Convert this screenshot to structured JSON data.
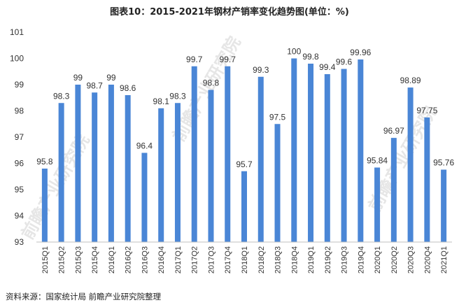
{
  "chart_data": {
    "type": "bar",
    "title": "图表10：2015-2021年钢材产销率变化趋势图(单位：%)",
    "xlabel": "",
    "ylabel": "",
    "ylim": [
      93,
      101
    ],
    "yticks": [
      "93",
      "94",
      "95",
      "96",
      "97",
      "98",
      "99",
      "100",
      "101"
    ],
    "categories": [
      "2015Q1",
      "2015Q2",
      "2015Q3",
      "2015Q4",
      "2016Q1",
      "2016Q2",
      "2016Q3",
      "2016Q4",
      "2017Q1",
      "2017Q2",
      "2017Q3",
      "2017Q4",
      "2018Q1",
      "2018Q2",
      "2018Q3",
      "2018Q4",
      "2019Q1",
      "2019Q2",
      "2019Q3",
      "2019Q4",
      "2020Q1",
      "2020Q2",
      "2020Q3",
      "2020Q4",
      "2021Q1"
    ],
    "values": [
      95.8,
      98.3,
      99,
      98.7,
      99,
      98.6,
      96.4,
      98.1,
      98.3,
      99.7,
      98.8,
      99.7,
      95.7,
      99.3,
      97.5,
      100,
      99.8,
      99.4,
      99.6,
      99.96,
      95.84,
      96.97,
      98.89,
      97.75,
      95.76
    ],
    "labels": [
      "95.8",
      "98.3",
      "99",
      "98.7",
      "99",
      "98.6",
      "96.4",
      "98.1",
      "98.3",
      "99.7",
      "98.8",
      "99.7",
      "95.7",
      "99.3",
      "97.5",
      "100",
      "99.8",
      "99.4",
      "99.6",
      "99.96",
      "95.84",
      "96.97",
      "98.89",
      "97.75",
      "95.76"
    ],
    "bar_color": "#4a86d6"
  },
  "source": "资料来源：国家统计局 前瞻产业研究院整理",
  "watermark": "前瞻产业研究院"
}
